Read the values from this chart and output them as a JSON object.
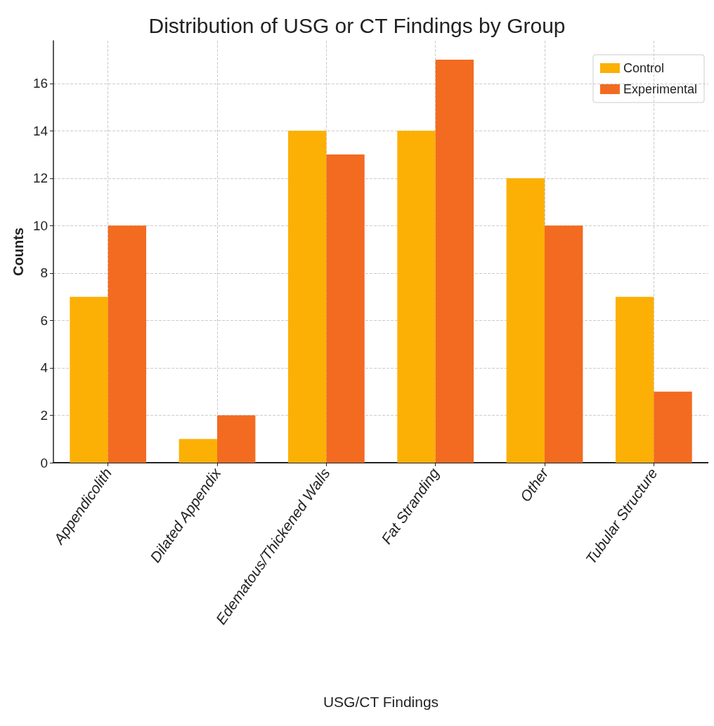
{
  "chart_data": {
    "type": "bar",
    "title": "Distribution of USG or CT Findings by Group",
    "xlabel": "USG/CT Findings",
    "ylabel": "Counts",
    "categories": [
      "Appendicolith",
      "Dilated Appendix",
      "Edematous/Thickened Walls",
      "Fat Stranding",
      "Other",
      "Tubular Structure"
    ],
    "series": [
      {
        "name": "Control",
        "color": "#fcb005",
        "values": [
          7,
          1,
          14,
          14,
          12,
          7
        ]
      },
      {
        "name": "Experimental",
        "color": "#f26b21",
        "values": [
          10,
          2,
          13,
          17,
          10,
          3
        ]
      }
    ],
    "ylim": [
      0,
      17.8
    ],
    "yticks": [
      0,
      2,
      4,
      6,
      8,
      10,
      12,
      14,
      16
    ],
    "grid": true,
    "legend": "top right"
  }
}
